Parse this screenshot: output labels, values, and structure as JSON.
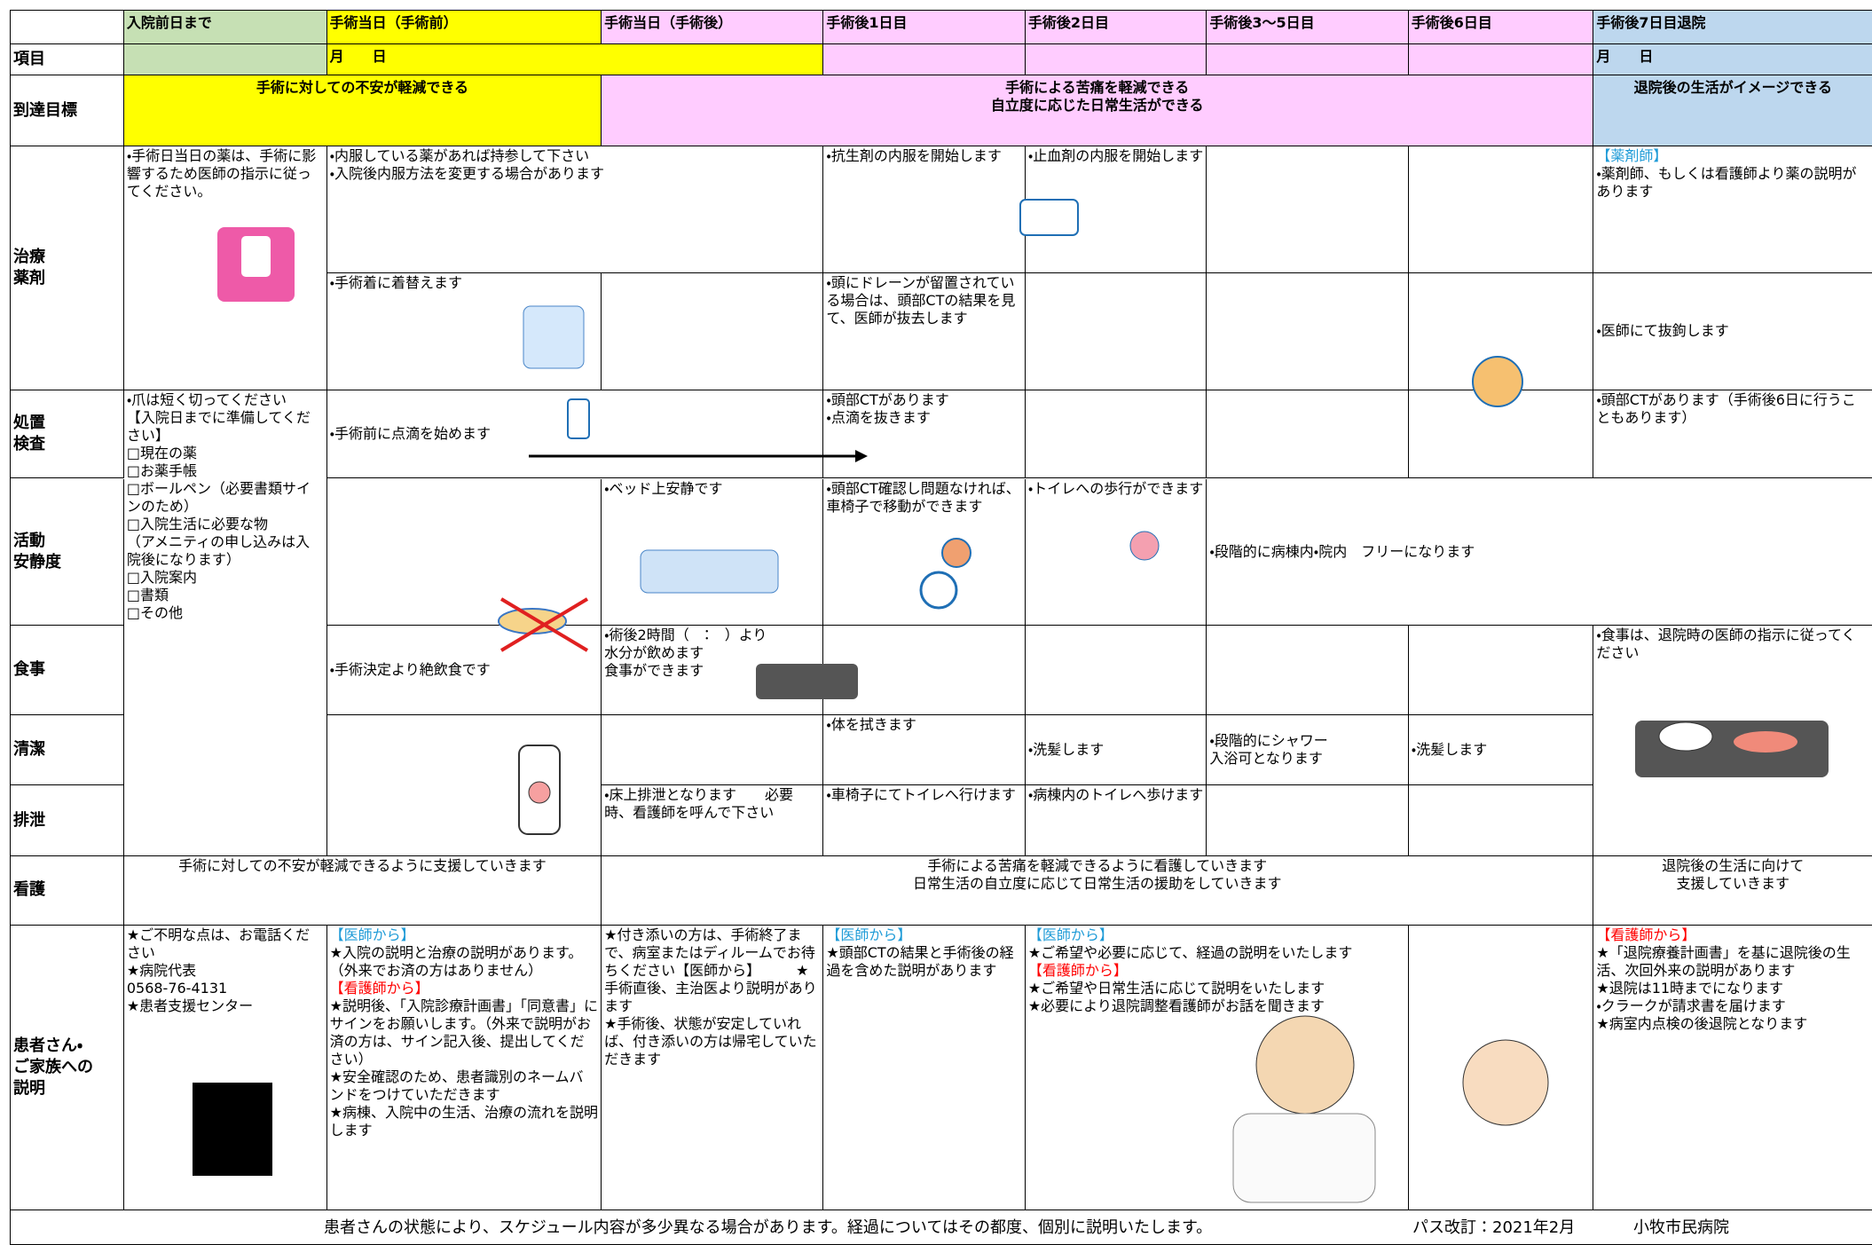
{
  "header": {
    "columns": [
      "入院前日まで",
      "手術当日（手術前）",
      "手術当日（手術後）",
      "手術後1日目",
      "手術後2日目",
      "手術後3～5日目",
      "手術後6日目",
      "手術後7日目退院"
    ]
  },
  "date_row": {
    "label": "項目",
    "dates": [
      "月　　日",
      "月　　日"
    ]
  },
  "goals": {
    "label": "到達目標",
    "items": [
      "手術に対しての不安が軽減できる",
      "手術による苦痛を軽減できる\n自立度に応じた日常生活ができる",
      "退院後の生活がイメージできる"
    ]
  },
  "treatment": {
    "label": "治療\n薬剤",
    "cells": [
      "・手術日当日の薬は、手術に影響するため医師の指示に従ってください。",
      "・内服している薬があれば持参して下さい\n・入院後内服方法を変更する場合があります",
      "・抗生剤の内服を開始します",
      "・止血剤の内服を開始します",
      [
        {
          "heading": "【薬剤師】",
          "color": "#1f9bd7",
          "text": "・薬剤師、もしくは看護師より薬の説明があります"
        }
      ],
      "・手術着に着替えます",
      "・頭にドレーンが留置されている場合は、頭部CTの結果を見て、医師が抜去します",
      "・医師にて抜鉤します"
    ]
  },
  "procedure": {
    "label": "処置\n検査",
    "cells": [
      "・爪は短く切ってください\n【入院日までに準備してください】\n□現在の薬\n□お薬手帳\n□ボールペン（必要書類サインのため）\n□入院生活に必要な物\n（アメニティの申し込みは入院後になります）\n□入院案内\n□書類\n□その他",
      "・手術前に点滴を始めます",
      "・頭部CTがあります\n・点滴を抜きます",
      "・頭部CTがあります（手術後6日に行うこともあります）"
    ]
  },
  "activity": {
    "label": "活動\n安静度",
    "cells": [
      "・ベッド上安静です",
      "・頭部CT確認し問題なければ、車椅子で移動ができます",
      "・トイレへの歩行ができます",
      "・段階的に病棟内・院内　フリーになります"
    ]
  },
  "food": {
    "label": "食事",
    "cells": [
      "・手術決定より絶飲食です",
      "・術後2時間（　：　）より\n水分が飲めます\n食事ができます",
      "・食事は、退院時の医師の指示に従ってください"
    ]
  },
  "hygiene": {
    "label": "清潔",
    "cells": [
      "・体を拭きます",
      "・洗髪します",
      "・段階的にシャワー\n入浴可となります",
      "・洗髪します"
    ]
  },
  "excretion": {
    "label": "排泄",
    "cells": [
      "・床上排泄となります　　必要時、看護師を呼んで下さい",
      "・車椅子にてトイレへ行けます",
      "・病棟内のトイレへ歩けます"
    ]
  },
  "nursing": {
    "label": "看護",
    "cells": [
      "手術に対しての不安が軽減できるように支援していきます",
      "手術による苦痛を軽減できるように看護していきます\n日常生活の自立度に応じて日常生活の援助をしていきます",
      "退院後の生活に向けて\n支援していきます"
    ]
  },
  "explanation": {
    "label": "患者さん・\nご家族への\n説明",
    "cells": [
      "★ご不明な点は、お電話ください\n★病院代表\n0568-76-4131\n★患者支援センター",
      [
        {
          "heading": "【医師から】",
          "color": "#1f9bd7",
          "text": "★入院の説明と治療の説明があります。（外来でお済の方はありません）"
        },
        {
          "heading": "【看護師から】",
          "color": "#ff0000",
          "text": "★説明後、「入院診療計画書」「同意書」にサインをお願いします。（外来で説明がお済の方は、サイン記入後、提出してください）\n★安全確認のため、患者識別のネームバンドをつけていただきます\n★病棟、入院中の生活、治療の流れを説明します"
        }
      ],
      "★付き添いの方は、手術終了まで、病室またはディルームでお待ちください【医師から】　　　★手術直後、主治医より説明があります\n★手術後、状態が安定していれば、付き添いの方は帰宅していただきます",
      [
        {
          "heading": "【医師から】",
          "color": "#1f9bd7",
          "text": "★頭部CTの結果と手術後の経過を含めた説明があります"
        }
      ],
      [
        {
          "heading": "【医師から】",
          "color": "#1f9bd7",
          "text": "★ご希望や必要に応じて、経過の説明をいたします"
        },
        {
          "heading": "【看護師から】",
          "color": "#ff0000",
          "text": "★ご希望や日常生活に応じて説明をいたします\n★必要により退院調整看護師がお話を聞きます"
        }
      ],
      [
        {
          "heading": "【看護師から】",
          "color": "#ff0000",
          "text": "★「退院療養計画書」を基に退院後の生活、次回外来の説明があります\n★退院は11時までになります\n・クラークが請求書を届けます\n★病室内点検の後退院となります"
        }
      ]
    ]
  },
  "footer": {
    "note": "患者さんの状態により、スケジュール内容が多少異なる場合があります。経過についてはその都度、個別に説明いたします。",
    "revision": "パス改訂：2021年2月",
    "hospital": "小牧市民病院"
  }
}
